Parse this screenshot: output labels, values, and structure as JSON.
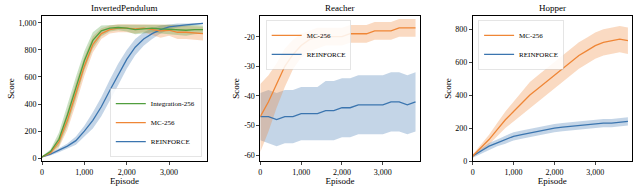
{
  "chart_data": [
    {
      "type": "line",
      "title": "InvertedPendulum",
      "x_label": "Episode",
      "y_label": "Score",
      "x": [
        0,
        200,
        400,
        600,
        800,
        1000,
        1200,
        1400,
        1600,
        1800,
        2000,
        2200,
        2400,
        2600,
        2800,
        3000,
        3200,
        3400,
        3600,
        3800
      ],
      "xlim": [
        0,
        3900
      ],
      "xticks": [
        0,
        {
          "value": 1000,
          "label": "1,000"
        },
        {
          "value": 2000,
          "label": "2,000"
        },
        {
          "value": 3000,
          "label": "3,000"
        }
      ],
      "ylim": [
        -20,
        1050
      ],
      "yticks": [
        0,
        200,
        400,
        600,
        800,
        {
          "value": 1000,
          "label": "1,000"
        }
      ],
      "grid": false,
      "legend": "lower right",
      "series": [
        {
          "name": "REINFORCE",
          "color": "#3b75af",
          "values": [
            10,
            30,
            60,
            90,
            130,
            200,
            280,
            380,
            500,
            620,
            730,
            820,
            880,
            920,
            950,
            970,
            980,
            985,
            990,
            995
          ],
          "lower": [
            5,
            20,
            45,
            70,
            100,
            160,
            220,
            310,
            420,
            540,
            660,
            760,
            830,
            880,
            920,
            950,
            965,
            975,
            982,
            990
          ],
          "upper": [
            15,
            40,
            75,
            110,
            160,
            240,
            340,
            450,
            580,
            700,
            800,
            880,
            930,
            960,
            980,
            990,
            995,
            995,
            998,
            1000
          ]
        },
        {
          "name": "MC-256",
          "color": "#ef8636",
          "values": [
            10,
            40,
            120,
            280,
            480,
            680,
            840,
            920,
            950,
            960,
            960,
            955,
            960,
            950,
            940,
            945,
            930,
            930,
            925,
            920
          ],
          "lower": [
            5,
            25,
            80,
            210,
            400,
            610,
            780,
            880,
            920,
            930,
            930,
            920,
            930,
            910,
            890,
            905,
            880,
            880,
            875,
            870
          ],
          "upper": [
            15,
            55,
            160,
            350,
            560,
            750,
            900,
            960,
            980,
            990,
            990,
            990,
            990,
            990,
            990,
            985,
            980,
            980,
            975,
            970
          ]
        },
        {
          "name": "Integration-256",
          "color": "#519e3e",
          "values": [
            10,
            50,
            140,
            320,
            520,
            720,
            870,
            940,
            960,
            965,
            960,
            950,
            955,
            960,
            955,
            950,
            950,
            945,
            950,
            950
          ],
          "lower": [
            5,
            35,
            90,
            240,
            440,
            650,
            810,
            900,
            935,
            945,
            935,
            915,
            920,
            930,
            920,
            915,
            910,
            905,
            915,
            920
          ],
          "upper": [
            15,
            65,
            190,
            400,
            600,
            790,
            930,
            980,
            985,
            985,
            985,
            985,
            990,
            990,
            990,
            985,
            990,
            985,
            985,
            980
          ]
        }
      ]
    },
    {
      "type": "line",
      "title": "Reacher",
      "x_label": "Episode",
      "y_label": "Score",
      "x": [
        0,
        200,
        400,
        600,
        800,
        1000,
        1200,
        1400,
        1600,
        1800,
        2000,
        2200,
        2400,
        2600,
        2800,
        3000,
        3200,
        3400,
        3600,
        3800
      ],
      "xlim": [
        0,
        3900
      ],
      "xticks": [
        0,
        {
          "value": 1000,
          "label": "1,000"
        },
        {
          "value": 2000,
          "label": "2,000"
        },
        {
          "value": 3000,
          "label": "3,000"
        }
      ],
      "ylim": [
        -62,
        -13
      ],
      "yticks": [
        -60,
        -50,
        -40,
        -30,
        -20
      ],
      "grid": false,
      "legend": "upper left",
      "series": [
        {
          "name": "REINFORCE",
          "color": "#3b75af",
          "values": [
            -47,
            -47,
            -48,
            -47,
            -47,
            -46,
            -46,
            -46,
            -45,
            -45,
            -44,
            -44,
            -43,
            -43,
            -43,
            -43,
            -42,
            -42,
            -43,
            -42
          ],
          "lower": [
            -55,
            -56,
            -57,
            -56,
            -56,
            -55,
            -55,
            -55,
            -55,
            -55,
            -54,
            -54,
            -53,
            -53,
            -53,
            -53,
            -52,
            -52,
            -53,
            -52
          ],
          "upper": [
            -39,
            -38,
            -39,
            -38,
            -38,
            -37,
            -37,
            -37,
            -35,
            -35,
            -34,
            -34,
            -33,
            -33,
            -33,
            -33,
            -32,
            -32,
            -33,
            -32
          ]
        },
        {
          "name": "MC-256",
          "color": "#ef8636",
          "values": [
            -47,
            -42,
            -36,
            -30,
            -26,
            -23,
            -21,
            -20,
            -20,
            -20,
            -20,
            -19,
            -19,
            -19,
            -18,
            -18,
            -18,
            -17,
            -17,
            -17
          ],
          "lower": [
            -59,
            -52,
            -44,
            -37,
            -31,
            -27,
            -25,
            -24,
            -23,
            -23,
            -23,
            -22,
            -22,
            -22,
            -21,
            -21,
            -21,
            -20,
            -20,
            -20
          ],
          "upper": [
            -36,
            -33,
            -29,
            -24,
            -21,
            -19,
            -18,
            -17,
            -17,
            -17,
            -17,
            -16,
            -16,
            -16,
            -15,
            -15,
            -15,
            -14,
            -14,
            -14
          ]
        }
      ]
    },
    {
      "type": "line",
      "title": "Hopper",
      "x_label": "Episode",
      "y_label": "Score",
      "x": [
        0,
        200,
        400,
        600,
        800,
        1000,
        1200,
        1400,
        1600,
        1800,
        2000,
        2200,
        2400,
        2600,
        2800,
        3000,
        3200,
        3400,
        3600,
        3800
      ],
      "xlim": [
        0,
        3900
      ],
      "xticks": [
        0,
        {
          "value": 1000,
          "label": "1,000"
        },
        {
          "value": 2000,
          "label": "2,000"
        },
        {
          "value": 3000,
          "label": "3,000"
        }
      ],
      "ylim": [
        0,
        880
      ],
      "yticks": [
        0,
        200,
        400,
        600,
        800
      ],
      "grid": false,
      "legend": "upper left",
      "series": [
        {
          "name": "REINFORCE",
          "color": "#3b75af",
          "values": [
            30,
            60,
            90,
            110,
            130,
            150,
            160,
            170,
            180,
            190,
            200,
            205,
            210,
            215,
            220,
            225,
            230,
            230,
            235,
            240
          ],
          "lower": [
            20,
            45,
            70,
            90,
            105,
            125,
            135,
            145,
            155,
            165,
            175,
            180,
            185,
            190,
            195,
            200,
            205,
            205,
            210,
            215
          ],
          "upper": [
            40,
            75,
            110,
            130,
            155,
            175,
            185,
            195,
            205,
            215,
            225,
            230,
            235,
            240,
            245,
            250,
            255,
            255,
            260,
            265
          ]
        },
        {
          "name": "MC-256",
          "color": "#ef8636",
          "values": [
            30,
            80,
            130,
            190,
            250,
            300,
            350,
            400,
            440,
            480,
            520,
            560,
            600,
            640,
            670,
            700,
            720,
            730,
            740,
            730
          ],
          "lower": [
            20,
            60,
            100,
            150,
            200,
            240,
            280,
            320,
            360,
            400,
            440,
            480,
            520,
            560,
            590,
            620,
            640,
            650,
            660,
            650
          ],
          "upper": [
            40,
            100,
            160,
            230,
            300,
            360,
            420,
            480,
            520,
            560,
            600,
            640,
            680,
            720,
            750,
            780,
            800,
            810,
            820,
            810
          ]
        }
      ]
    }
  ]
}
